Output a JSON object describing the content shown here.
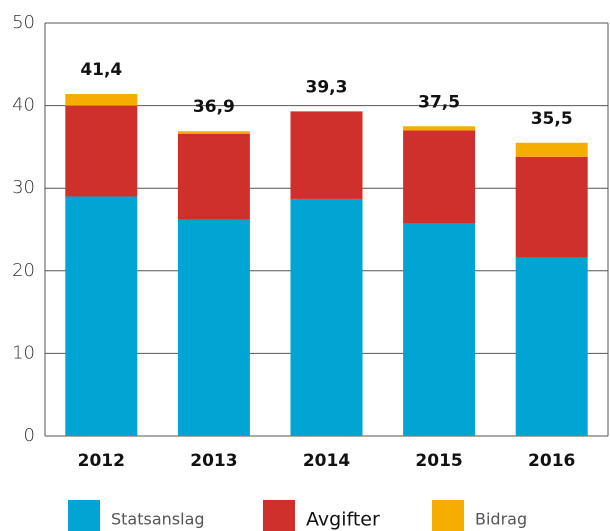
{
  "chart_data": {
    "type": "stacked_bar",
    "categories": [
      "2012",
      "2013",
      "2014",
      "2015",
      "2016"
    ],
    "series": [
      {
        "name": "Statsanslag",
        "color": "#00a5d4",
        "values": [
          29,
          26.2,
          28.7,
          25.7,
          21.6
        ]
      },
      {
        "name": "Avgifter",
        "color": "#cf302b",
        "values": [
          11,
          10.4,
          10.6,
          11.3,
          12.2
        ]
      },
      {
        "name": "Bidrag",
        "color": "#f5ad00",
        "values": [
          1.4,
          0.3,
          0,
          0.5,
          1.7
        ]
      }
    ],
    "totals": [
      41.4,
      36.9,
      39.3,
      37.5,
      35.5
    ],
    "total_labels": [
      "41,4",
      "36,9",
      "39,3",
      "37,5",
      "35,5"
    ],
    "ylim": [
      0,
      50
    ],
    "yticks": [
      0,
      10,
      20,
      30,
      40,
      50
    ],
    "grid": true
  }
}
